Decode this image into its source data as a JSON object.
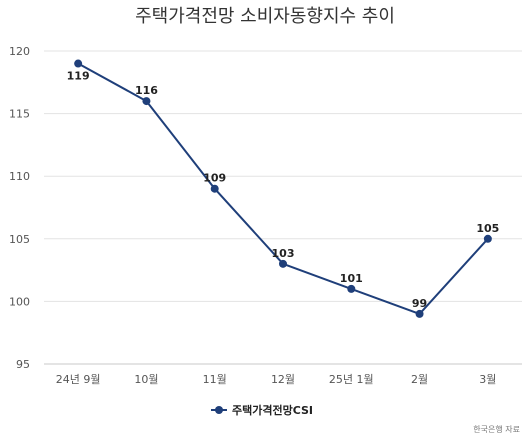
{
  "chart_data": {
    "type": "line",
    "title": "주택가격전망 소비자동향지수 추이",
    "categories": [
      "24년 9월",
      "10월",
      "11월",
      "12월",
      "25년 1월",
      "2월",
      "3월"
    ],
    "series": [
      {
        "name": "주택가격전망CSI",
        "values": [
          119,
          116,
          109,
          103,
          101,
          99,
          105
        ],
        "color": "#1f3f7a"
      }
    ],
    "ylim": [
      95,
      120
    ],
    "yticks": [
      95,
      100,
      105,
      110,
      115,
      120
    ],
    "grid": true,
    "legend": "bottom-center",
    "source": "한국은행 자료"
  }
}
